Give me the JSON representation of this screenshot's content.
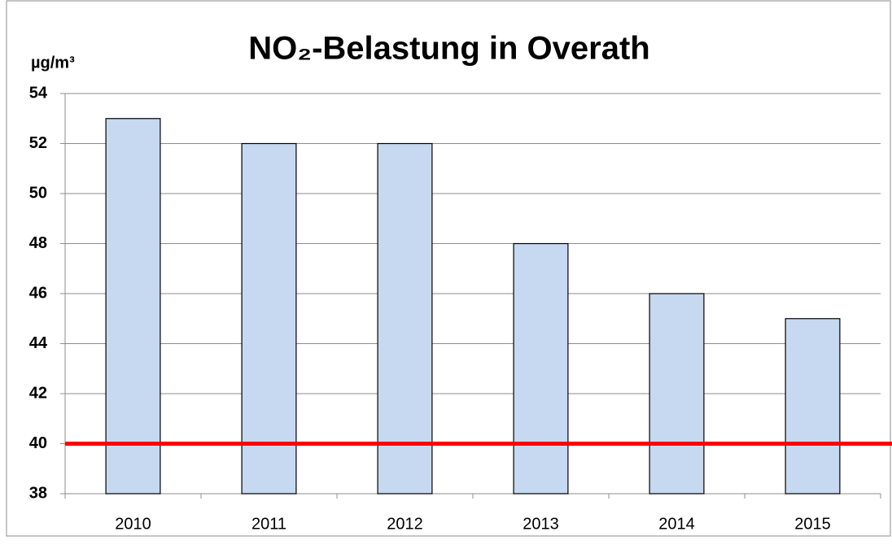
{
  "chart_data": {
    "type": "bar",
    "title": "NO₂-Belastung in Overath",
    "y_label": "µg/m³",
    "categories": [
      "2010",
      "2011",
      "2012",
      "2013",
      "2014",
      "2015"
    ],
    "values": [
      53,
      52,
      52,
      48,
      46,
      45
    ],
    "color": "#c6d9f1",
    "ylim": [
      38,
      54
    ],
    "yticks": [
      38,
      40,
      42,
      44,
      46,
      48,
      50,
      52,
      54
    ],
    "grid": true,
    "reference_line": {
      "value": 40,
      "color": "#ff0000"
    }
  }
}
